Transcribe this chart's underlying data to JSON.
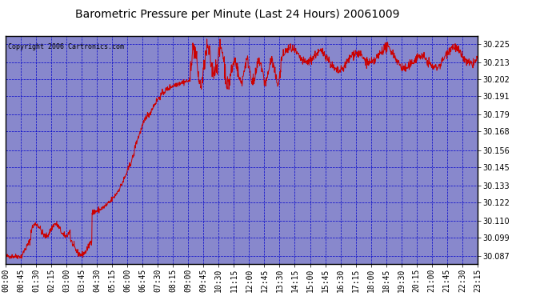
{
  "title": "Barometric Pressure per Minute (Last 24 Hours) 20061009",
  "copyright": "Copyright 2006 Cartronics.com",
  "yticks": [
    30.087,
    30.099,
    30.11,
    30.122,
    30.133,
    30.145,
    30.156,
    30.168,
    30.179,
    30.191,
    30.202,
    30.213,
    30.225
  ],
  "ylim": [
    30.082,
    30.23
  ],
  "x_tick_labels": [
    "00:00",
    "00:45",
    "01:30",
    "02:15",
    "03:00",
    "03:45",
    "04:30",
    "05:15",
    "06:00",
    "06:45",
    "07:30",
    "08:15",
    "09:00",
    "09:45",
    "10:30",
    "11:15",
    "12:00",
    "12:45",
    "13:30",
    "14:15",
    "15:00",
    "15:45",
    "16:30",
    "17:15",
    "18:00",
    "18:45",
    "19:30",
    "20:15",
    "21:00",
    "21:45",
    "22:30",
    "23:15"
  ],
  "fig_bg_color": "#FFFFFF",
  "plot_bg_color": "#8888CC",
  "line_color": "#CC0000",
  "title_color": "#000000",
  "grid_color": "#0000CC",
  "tick_label_color": "#000000",
  "border_color": "#000000",
  "title_fontsize": 10,
  "tick_fontsize": 7,
  "copyright_fontsize": 6
}
